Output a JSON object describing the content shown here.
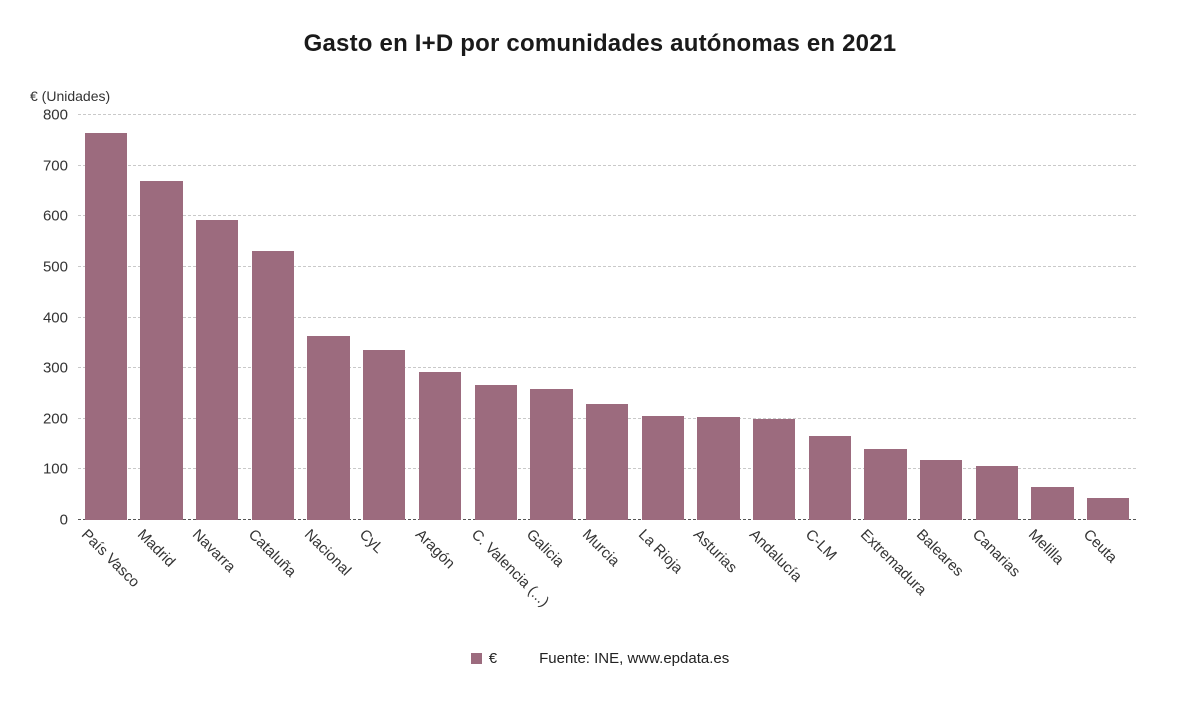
{
  "title": "Gasto en I+D por comunidades autónomas en 2021",
  "y_axis_title": "€ (Unidades)",
  "legend": {
    "series_label": "€",
    "source": "Fuente: INE, www.epdata.es"
  },
  "colors": {
    "bar": "#9c6b7e",
    "grid": "#c9c9c9",
    "baseline": "#555555",
    "text": "#333333",
    "title": "#1a1a1a"
  },
  "chart_data": {
    "type": "bar",
    "title": "Gasto en I+D por comunidades autónomas en 2021",
    "ylabel": "€ (Unidades)",
    "xlabel": "",
    "ylim": [
      0,
      800
    ],
    "ytick_step": 100,
    "grid": true,
    "legend_position": "bottom",
    "categories": [
      "País Vasco",
      "Madrid",
      "Navarra",
      "Cataluña",
      "Nacional",
      "CyL",
      "Aragón",
      "C. Valencia (...)",
      "Galicia",
      "Murcia",
      "La Rioja",
      "Asturias",
      "Andalucía",
      "C-LM",
      "Extremadura",
      "Baleares",
      "Canarias",
      "Melilla",
      "Ceuta"
    ],
    "values": [
      765,
      670,
      592,
      532,
      363,
      335,
      293,
      266,
      258,
      230,
      206,
      203,
      200,
      165,
      141,
      118,
      106,
      66,
      44
    ]
  }
}
